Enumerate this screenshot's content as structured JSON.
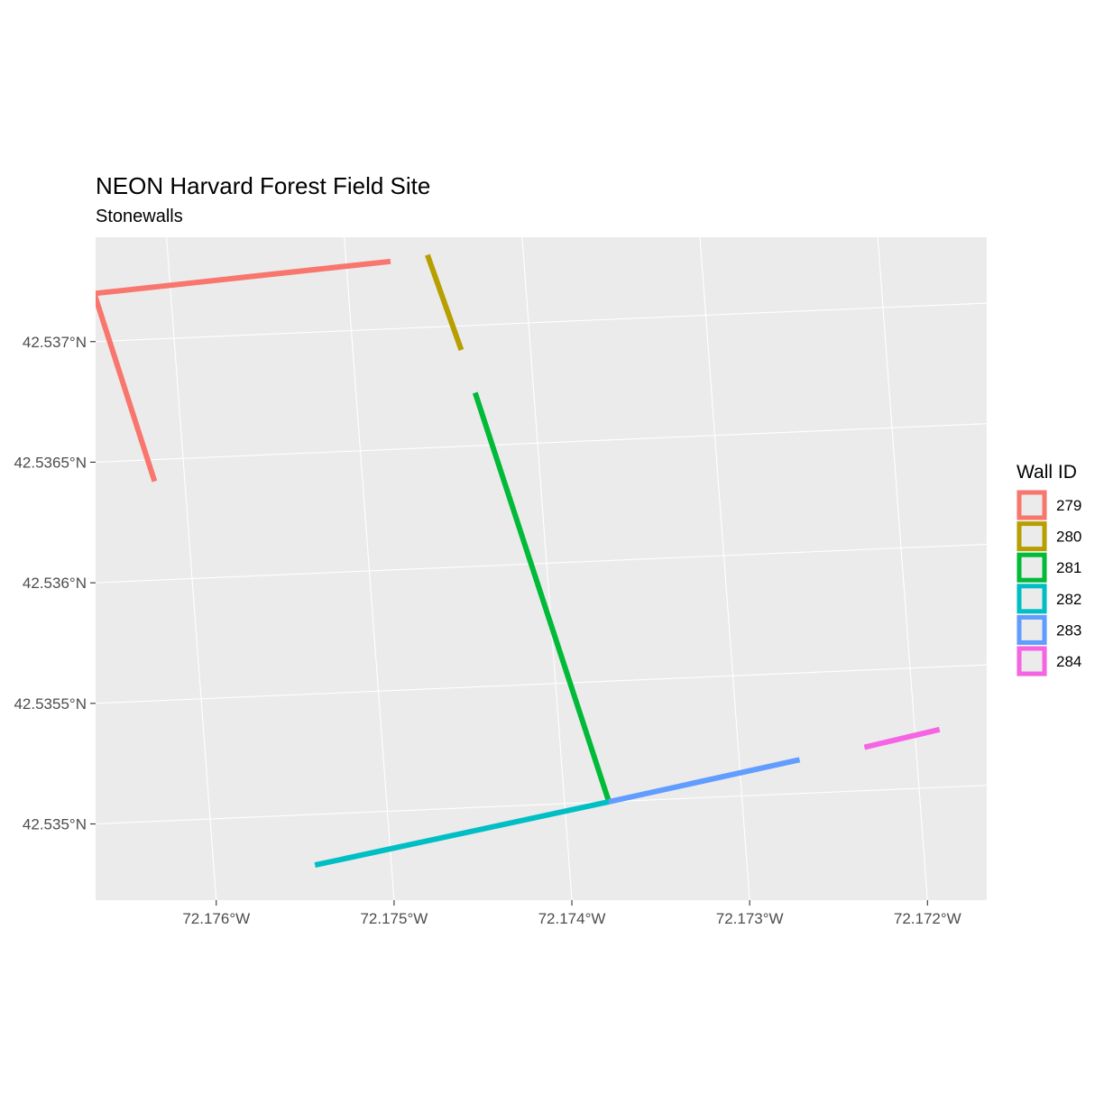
{
  "chart_data": {
    "type": "line",
    "title": "NEON Harvard Forest Field Site",
    "subtitle": "Stonewalls",
    "xlabel": "",
    "ylabel": "",
    "xlim": [
      -72.17662,
      -72.17164
    ],
    "ylim": [
      42.5346,
      42.53743
    ],
    "grid": true,
    "legend_position": "right",
    "x_ticks": [
      {
        "value": -72.176,
        "label": "72.176°W"
      },
      {
        "value": -72.175,
        "label": "72.175°W"
      },
      {
        "value": -72.174,
        "label": "72.174°W"
      },
      {
        "value": -72.173,
        "label": "72.173°W"
      },
      {
        "value": -72.172,
        "label": "72.172°W"
      }
    ],
    "y_ticks": [
      {
        "value": 42.537,
        "label": "42.537°N"
      },
      {
        "value": 42.5365,
        "label": "42.5365°N"
      },
      {
        "value": 42.536,
        "label": "42.536°N"
      },
      {
        "value": 42.5355,
        "label": "42.5355°N"
      },
      {
        "value": 42.535,
        "label": "42.535°N"
      }
    ],
    "legend": {
      "title": "Wall ID",
      "items": [
        {
          "label": "279",
          "color": "#F8766D"
        },
        {
          "label": "280",
          "color": "#B79F00"
        },
        {
          "label": "281",
          "color": "#00BA38"
        },
        {
          "label": "282",
          "color": "#00BFC4"
        },
        {
          "label": "283",
          "color": "#619CFF"
        },
        {
          "label": "284",
          "color": "#F564E3"
        }
      ]
    },
    "series": [
      {
        "name": "279",
        "color": "#F8766D",
        "x": [
          -72.17475,
          -72.17643,
          -72.17617
        ],
        "y": [
          42.53728,
          42.5372,
          42.53641
        ]
      },
      {
        "name": "280",
        "color": "#B79F00",
        "x": [
          -72.17454,
          -72.17439
        ],
        "y": [
          42.5373,
          42.5369
        ]
      },
      {
        "name": "281",
        "color": "#00BA38",
        "x": [
          -72.17433,
          -72.17375
        ],
        "y": [
          42.53672,
          42.535
        ]
      },
      {
        "name": "282",
        "color": "#00BFC4",
        "x": [
          -72.17375,
          -72.17543
        ],
        "y": [
          42.535,
          42.53479
        ]
      },
      {
        "name": "283",
        "color": "#619CFF",
        "x": [
          -72.17375,
          -72.17266
        ],
        "y": [
          42.535,
          42.53514
        ]
      },
      {
        "name": "284",
        "color": "#F564E3",
        "x": [
          -72.17229,
          -72.17186
        ],
        "y": [
          42.53518,
          42.53524
        ]
      }
    ]
  }
}
